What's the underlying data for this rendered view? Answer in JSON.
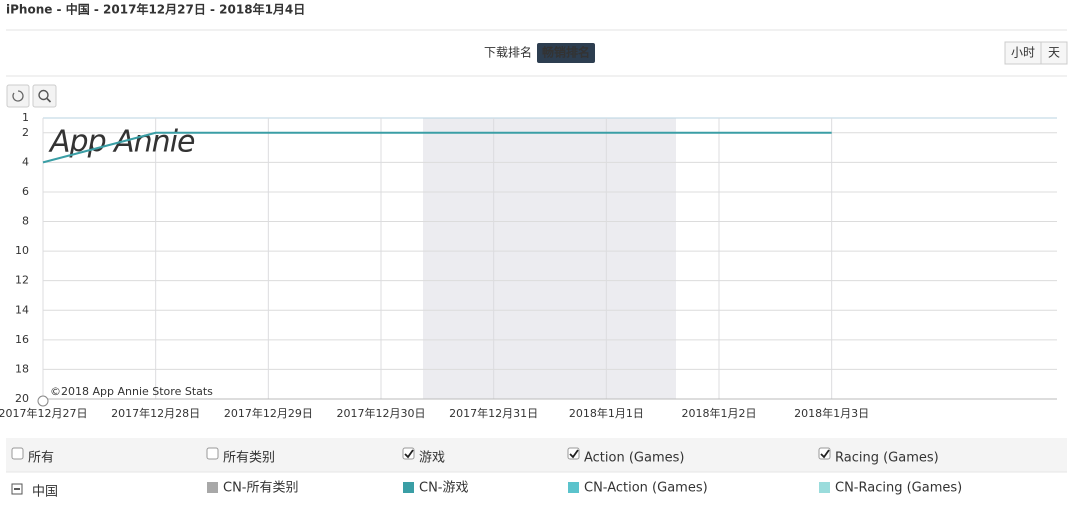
{
  "header": {
    "title": "iPhone - 中国 - 2017年12月27日 - 2018年1月4日"
  },
  "tabs": [
    {
      "label": "下载排名",
      "active": false
    },
    {
      "label": "畅销排名",
      "active": true
    }
  ],
  "granularity": [
    {
      "label": "小时",
      "active": false
    },
    {
      "label": "天",
      "active": false
    }
  ],
  "chart_data": {
    "type": "line",
    "watermark": "App Annie",
    "credit": "©2018 App Annie Store Stats",
    "categories": [
      "2017年12月27日",
      "2017年12月28日",
      "2017年12月29日",
      "2017年12月30日",
      "2017年12月31日",
      "2018年1月1日",
      "2018年1月2日",
      "2018年1月3日"
    ],
    "values": [
      4,
      2,
      2,
      2,
      2,
      2,
      2,
      2
    ],
    "color": "#3a9ea5",
    "ylim": [
      1,
      20
    ],
    "yticks": [
      1,
      2,
      4,
      6,
      8,
      10,
      12,
      14,
      16,
      18,
      20
    ],
    "yreverse": true,
    "grid": true
  },
  "legend": {
    "filters": [
      {
        "label": "所有",
        "checked": false
      },
      {
        "label": "所有类别",
        "checked": false
      },
      {
        "label": "游戏",
        "checked": true
      },
      {
        "label": "Action (Games)",
        "checked": true
      },
      {
        "label": "Racing (Games)",
        "checked": true
      }
    ],
    "region": "中国",
    "items": [
      {
        "label": "CN-所有类别",
        "color": "#a8a8a8"
      },
      {
        "label": "CN-游戏",
        "color": "#3a9ea5"
      },
      {
        "label": "CN-Action (Games)",
        "color": "#5bc3cc"
      },
      {
        "label": "CN-Racing (Games)",
        "color": "#9adcdc"
      }
    ]
  }
}
